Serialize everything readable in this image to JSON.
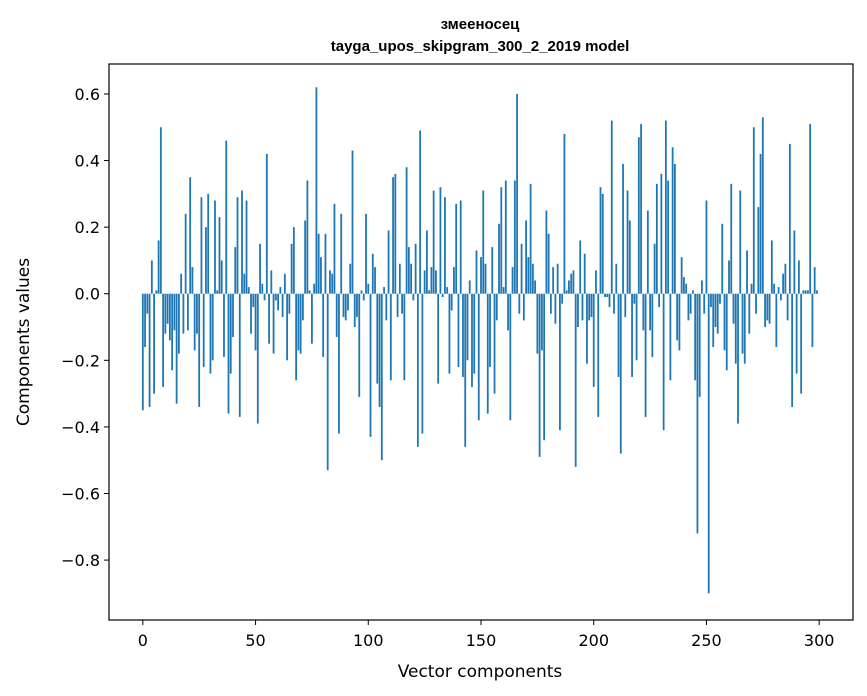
{
  "chart_data": {
    "type": "bar",
    "title": "змееносец",
    "subtitle": "tayga_upos_skipgram_300_2_2019 model",
    "xlabel": "Vector components",
    "ylabel": "Components values",
    "xlim": [
      -15,
      315
    ],
    "ylim": [
      -0.98,
      0.69
    ],
    "xticks": [
      0,
      50,
      100,
      150,
      200,
      250,
      300
    ],
    "yticks": [
      -0.8,
      -0.6,
      -0.4,
      -0.2,
      0.0,
      0.2,
      0.4,
      0.6
    ],
    "ytick_labels": [
      "−0.8",
      "−0.6",
      "−0.4",
      "−0.2",
      "0.0",
      "0.2",
      "0.4",
      "0.6"
    ],
    "bar_color": "#1f77b4",
    "series": [
      {
        "values": [
          -0.35,
          -0.16,
          -0.06,
          -0.34,
          0.1,
          -0.3,
          0.01,
          0.16,
          0.5,
          -0.28,
          -0.12,
          -0.09,
          -0.14,
          -0.23,
          -0.11,
          -0.33,
          -0.18,
          0.06,
          -0.12,
          0.24,
          -0.11,
          0.35,
          0.08,
          -0.17,
          -0.12,
          -0.34,
          0.29,
          -0.22,
          0.2,
          0.3,
          -0.24,
          -0.2,
          0.28,
          0.01,
          0.23,
          0.1,
          -0.19,
          0.46,
          -0.36,
          -0.24,
          -0.13,
          0.14,
          0.29,
          -0.37,
          0.31,
          0.06,
          0.28,
          0.02,
          -0.12,
          -0.04,
          -0.17,
          -0.39,
          0.15,
          0.03,
          -0.02,
          0.42,
          -0.15,
          0.07,
          -0.18,
          -0.02,
          -0.05,
          0.02,
          -0.07,
          0.06,
          -0.2,
          -0.06,
          0.15,
          0.2,
          -0.26,
          -0.17,
          -0.18,
          -0.08,
          0.22,
          0.34,
          0.01,
          -0.15,
          0.03,
          0.62,
          0.18,
          0.11,
          -0.19,
          0.18,
          -0.53,
          0.07,
          0.06,
          0.27,
          -0.13,
          -0.42,
          0.24,
          -0.07,
          -0.08,
          -0.05,
          0.09,
          0.43,
          -0.1,
          -0.07,
          -0.31,
          0.01,
          -0.02,
          0.24,
          0.03,
          -0.43,
          0.12,
          0.08,
          -0.27,
          -0.34,
          -0.5,
          0.02,
          -0.08,
          0.19,
          -0.26,
          0.35,
          0.36,
          -0.07,
          0.09,
          -0.06,
          -0.26,
          0.38,
          0.14,
          0.09,
          -0.02,
          0.15,
          -0.46,
          0.49,
          -0.42,
          0.07,
          0.19,
          0.01,
          0.08,
          0.31,
          0.07,
          -0.27,
          0.32,
          -0.01,
          0.29,
          0.02,
          -0.24,
          -0.05,
          0.08,
          0.27,
          -0.22,
          0.28,
          -0.25,
          -0.46,
          -0.2,
          0.04,
          -0.28,
          -0.24,
          0.13,
          -0.38,
          0.11,
          0.31,
          0.09,
          -0.36,
          -0.22,
          0.14,
          -0.3,
          -0.08,
          0.21,
          0.32,
          0.02,
          0.34,
          -0.11,
          -0.38,
          0.08,
          0.34,
          0.6,
          -0.06,
          0.15,
          -0.08,
          0.22,
          0.11,
          0.33,
          0.09,
          0.04,
          -0.18,
          -0.49,
          -0.17,
          -0.44,
          0.25,
          0.18,
          -0.06,
          0.08,
          -0.09,
          0.09,
          -0.41,
          -0.03,
          0.48,
          0.01,
          0.04,
          0.06,
          0.07,
          -0.52,
          -0.1,
          0.16,
          -0.08,
          0.12,
          -0.21,
          -0.08,
          -0.07,
          -0.28,
          0.07,
          -0.37,
          0.32,
          0.3,
          -0.01,
          -0.01,
          -0.04,
          0.52,
          -0.06,
          0.09,
          -0.25,
          -0.48,
          0.39,
          -0.07,
          0.31,
          0.22,
          -0.25,
          -0.03,
          -0.2,
          0.47,
          0.51,
          -0.11,
          -0.37,
          0.25,
          -0.11,
          -0.19,
          0.15,
          0.33,
          -0.04,
          0.36,
          -0.41,
          0.52,
          0.34,
          -0.26,
          0.44,
          0.39,
          -0.14,
          -0.17,
          0.11,
          0.05,
          0.03,
          -0.08,
          -0.06,
          0.01,
          -0.26,
          -0.72,
          -0.31,
          0.04,
          -0.06,
          0.28,
          -0.9,
          -0.04,
          -0.16,
          -0.1,
          -0.12,
          -0.03,
          0.21,
          -0.17,
          -0.23,
          0.1,
          0.33,
          -0.09,
          -0.21,
          -0.39,
          0.31,
          -0.18,
          -0.21,
          0.13,
          -0.12,
          0.03,
          0.5,
          -0.06,
          0.26,
          0.42,
          0.53,
          -0.1,
          -0.08,
          -0.09,
          0.16,
          0.03,
          -0.16,
          0.02,
          -0.02,
          0.06,
          0.09,
          -0.08,
          0.45,
          -0.34,
          0.19,
          -0.24,
          0.1,
          -0.3,
          0.01,
          0.01,
          0.01,
          0.51,
          -0.16,
          0.08,
          0.01
        ]
      }
    ]
  }
}
